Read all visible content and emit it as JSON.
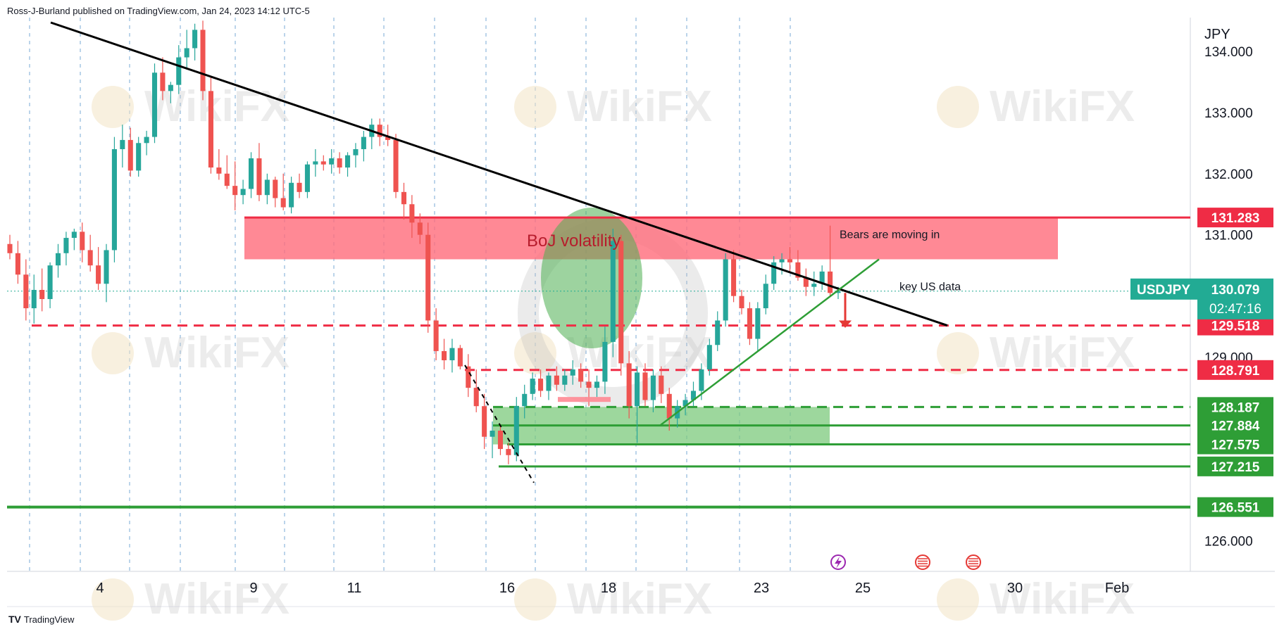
{
  "header": {
    "published": "Ross-J-Burland published on TradingView.com, Jan 24, 2023 14:12 UTC-5"
  },
  "footer": {
    "brand": "TradingView",
    "logo": "TV"
  },
  "watermark": {
    "text": "WikiFX"
  },
  "colors": {
    "up": "#26a69a",
    "down": "#ef5350",
    "zone_red": "#ff6b7a",
    "zone_green": "#7cc97c",
    "level_red": "#ef2c45",
    "level_green": "#2e9e36",
    "trend": "#000000",
    "ticker_bg": "#22ab94"
  },
  "chart_data": {
    "type": "candlestick",
    "symbol": "USDJPY",
    "currency_label": "JPY",
    "y_axis": {
      "range": [
        125.5,
        134.55
      ],
      "tick_labels": [
        "134.000",
        "133.000",
        "132.000",
        "131.000",
        "129.000",
        "126.000"
      ]
    },
    "x_axis": {
      "tick_labels": [
        "4",
        "9",
        "11",
        "16",
        "18",
        "23",
        "25",
        "30",
        "Feb"
      ]
    },
    "last_price": {
      "symbol": "USDJPY",
      "value": "130.079",
      "countdown": "02:47:16"
    },
    "price_labels": [
      {
        "value": "131.283",
        "color": "red"
      },
      {
        "value": "129.518",
        "color": "red"
      },
      {
        "value": "128.791",
        "color": "red"
      },
      {
        "value": "128.187",
        "color": "green"
      },
      {
        "value": "127.884",
        "color": "green"
      },
      {
        "value": "127.575",
        "color": "green"
      },
      {
        "value": "127.215",
        "color": "green"
      },
      {
        "value": "126.551",
        "color": "green"
      }
    ],
    "annotations": [
      {
        "name": "boj-volatility",
        "text": "BoJ volatility"
      },
      {
        "name": "bears-moving-in",
        "text": "Bears are moving in"
      },
      {
        "name": "key-us-data",
        "text": "key US data"
      }
    ],
    "candles": [
      [
        130.85,
        131.0,
        130.6,
        130.7
      ],
      [
        130.7,
        130.9,
        130.2,
        130.35
      ],
      [
        130.35,
        130.6,
        129.6,
        129.8
      ],
      [
        129.8,
        130.35,
        129.55,
        130.1
      ],
      [
        130.1,
        130.45,
        129.75,
        129.95
      ],
      [
        129.95,
        130.55,
        129.8,
        130.5
      ],
      [
        130.5,
        130.85,
        130.3,
        130.7
      ],
      [
        130.7,
        131.05,
        130.5,
        130.95
      ],
      [
        130.95,
        131.1,
        130.75,
        131.05
      ],
      [
        131.05,
        131.2,
        130.55,
        130.75
      ],
      [
        130.75,
        131.0,
        130.4,
        130.5
      ],
      [
        130.5,
        130.8,
        130.1,
        130.2
      ],
      [
        130.2,
        130.85,
        129.9,
        130.75
      ],
      [
        130.75,
        132.6,
        130.55,
        132.4
      ],
      [
        132.4,
        132.8,
        132.1,
        132.55
      ],
      [
        132.55,
        132.75,
        131.95,
        132.05
      ],
      [
        132.05,
        132.6,
        131.95,
        132.5
      ],
      [
        132.5,
        132.7,
        132.3,
        132.6
      ],
      [
        132.6,
        133.8,
        132.5,
        133.65
      ],
      [
        133.65,
        133.9,
        133.2,
        133.35
      ],
      [
        133.35,
        133.5,
        133.15,
        133.45
      ],
      [
        133.45,
        134.1,
        133.3,
        133.9
      ],
      [
        133.9,
        134.35,
        133.7,
        134.05
      ],
      [
        134.05,
        134.45,
        133.85,
        134.35
      ],
      [
        134.35,
        134.5,
        133.2,
        133.35
      ],
      [
        133.35,
        133.6,
        132.0,
        132.1
      ],
      [
        132.1,
        132.4,
        131.9,
        132.0
      ],
      [
        132.0,
        132.3,
        131.75,
        131.8
      ],
      [
        131.8,
        132.2,
        131.4,
        131.65
      ],
      [
        131.65,
        131.9,
        131.5,
        131.75
      ],
      [
        131.75,
        132.35,
        131.6,
        132.25
      ],
      [
        132.25,
        132.5,
        131.55,
        131.65
      ],
      [
        131.65,
        132.0,
        131.5,
        131.9
      ],
      [
        131.9,
        131.95,
        131.45,
        131.6
      ],
      [
        131.6,
        132.0,
        131.4,
        131.45
      ],
      [
        131.45,
        131.95,
        131.35,
        131.85
      ],
      [
        131.85,
        132.0,
        131.6,
        131.7
      ],
      [
        131.7,
        132.2,
        131.6,
        132.15
      ],
      [
        132.15,
        132.4,
        131.95,
        132.2
      ],
      [
        132.2,
        132.3,
        132.05,
        132.15
      ],
      [
        132.15,
        132.4,
        132.0,
        132.25
      ],
      [
        132.25,
        132.35,
        132.0,
        132.1
      ],
      [
        132.1,
        132.35,
        131.95,
        132.3
      ],
      [
        132.3,
        132.5,
        132.1,
        132.4
      ],
      [
        132.4,
        132.7,
        132.2,
        132.6
      ],
      [
        132.6,
        132.9,
        132.4,
        132.8
      ],
      [
        132.8,
        132.9,
        132.45,
        132.6
      ],
      [
        132.6,
        132.8,
        132.45,
        132.55
      ],
      [
        132.55,
        132.65,
        131.6,
        131.7
      ],
      [
        131.7,
        131.85,
        131.25,
        131.5
      ],
      [
        131.5,
        131.65,
        130.95,
        131.2
      ],
      [
        131.2,
        131.35,
        130.85,
        131.0
      ],
      [
        131.0,
        131.2,
        129.4,
        129.6
      ],
      [
        129.6,
        129.8,
        128.95,
        129.1
      ],
      [
        129.1,
        129.3,
        128.8,
        128.95
      ],
      [
        128.95,
        129.3,
        128.75,
        129.15
      ],
      [
        129.15,
        129.2,
        128.8,
        128.85
      ],
      [
        128.85,
        129.05,
        128.35,
        128.5
      ],
      [
        128.5,
        128.8,
        128.1,
        128.2
      ],
      [
        128.2,
        128.4,
        127.5,
        127.7
      ],
      [
        127.7,
        127.95,
        127.35,
        127.8
      ],
      [
        127.8,
        127.9,
        127.4,
        127.5
      ],
      [
        127.5,
        127.6,
        127.25,
        127.4
      ],
      [
        127.4,
        128.35,
        127.3,
        128.2
      ],
      [
        128.2,
        128.55,
        128.0,
        128.4
      ],
      [
        128.4,
        128.75,
        128.3,
        128.65
      ],
      [
        128.65,
        128.8,
        128.35,
        128.45
      ],
      [
        128.45,
        128.75,
        128.3,
        128.7
      ],
      [
        128.7,
        128.85,
        128.45,
        128.55
      ],
      [
        128.55,
        128.8,
        128.45,
        128.7
      ],
      [
        128.7,
        128.95,
        128.55,
        128.8
      ],
      [
        128.8,
        128.9,
        128.5,
        128.6
      ],
      [
        128.6,
        128.8,
        128.2,
        128.5
      ],
      [
        128.5,
        128.7,
        128.35,
        128.6
      ],
      [
        128.6,
        129.5,
        128.4,
        129.25
      ],
      [
        129.25,
        131.1,
        129.0,
        130.9
      ],
      [
        130.9,
        131.0,
        128.7,
        128.9
      ],
      [
        128.9,
        129.1,
        128.0,
        128.2
      ],
      [
        128.2,
        128.85,
        127.6,
        128.75
      ],
      [
        128.75,
        128.9,
        128.2,
        128.3
      ],
      [
        128.3,
        128.8,
        128.1,
        128.7
      ],
      [
        128.7,
        128.85,
        128.25,
        128.4
      ],
      [
        128.4,
        128.5,
        127.8,
        128.0
      ],
      [
        128.0,
        128.3,
        127.85,
        128.2
      ],
      [
        128.2,
        128.4,
        128.05,
        128.3
      ],
      [
        128.3,
        128.6,
        128.2,
        128.45
      ],
      [
        128.45,
        128.9,
        128.3,
        128.8
      ],
      [
        128.8,
        129.3,
        128.7,
        129.2
      ],
      [
        129.2,
        129.75,
        129.1,
        129.6
      ],
      [
        129.6,
        130.7,
        129.5,
        130.6
      ],
      [
        130.6,
        130.75,
        129.9,
        130.0
      ],
      [
        130.0,
        130.1,
        129.7,
        129.8
      ],
      [
        129.8,
        129.9,
        129.2,
        129.3
      ],
      [
        129.3,
        129.9,
        129.1,
        129.8
      ],
      [
        129.8,
        130.35,
        129.7,
        130.2
      ],
      [
        130.2,
        130.65,
        130.1,
        130.55
      ],
      [
        130.55,
        130.7,
        130.35,
        130.6
      ],
      [
        130.6,
        130.8,
        130.4,
        130.55
      ],
      [
        130.55,
        130.75,
        130.25,
        130.3
      ],
      [
        130.3,
        130.45,
        130.0,
        130.15
      ],
      [
        130.15,
        130.4,
        130.0,
        130.2
      ],
      [
        130.2,
        130.5,
        130.1,
        130.4
      ],
      [
        130.4,
        131.15,
        130.0,
        130.05
      ],
      [
        130.05,
        130.15,
        129.95,
        130.08
      ]
    ]
  }
}
